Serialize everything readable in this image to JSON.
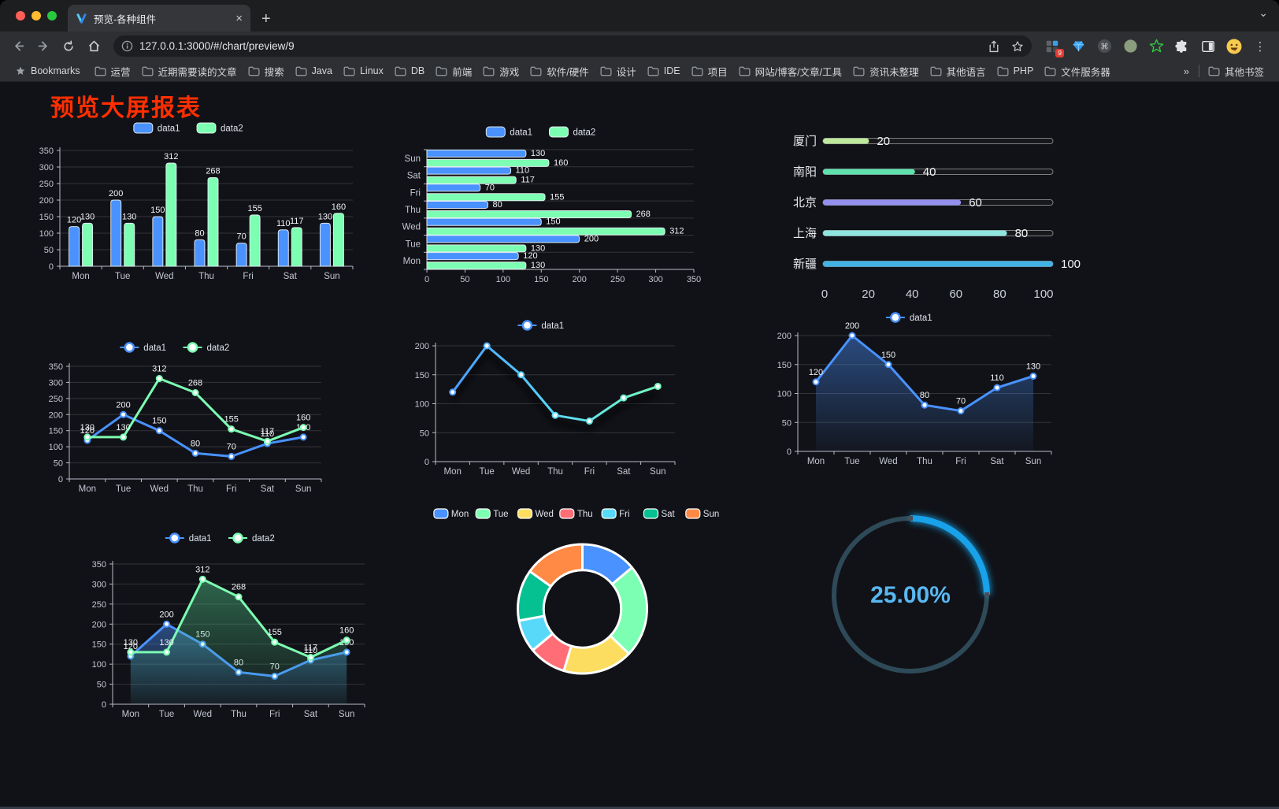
{
  "browser": {
    "tab": {
      "title": "预览-各种组件",
      "close_glyph": "×",
      "new_tab_glyph": "+",
      "tab_search_glyph": "⌄"
    },
    "url": "127.0.0.1:3000/#/chart/preview/9",
    "menu_glyph": "⋮",
    "extension_badge": "9",
    "bookmarks_label": "Bookmarks",
    "bookmark_folders": [
      "运营",
      "近期需要读的文章",
      "搜索",
      "Java",
      "Linux",
      "DB",
      "前端",
      "游戏",
      "软件/硬件",
      "设计",
      "IDE",
      "项目",
      "网站/博客/文章/工具",
      "资讯未整理",
      "其他语言",
      "PHP",
      "文件服务器"
    ],
    "bookmarks_overflow_glyph": "»",
    "other_bookmarks_label": "其他书签"
  },
  "page": {
    "title": "预览大屏报表",
    "title_color": "#ff2f00",
    "background": "#111217"
  },
  "palette": {
    "blue": "#4992ff",
    "green": "#7cffb2",
    "yellow": "#fddd60",
    "red": "#ff6e76",
    "lightblue": "#58d9f9",
    "teal": "#05c091",
    "orange": "#ff8a45"
  },
  "chart_data": [
    {
      "type": "bar",
      "categories": [
        "Mon",
        "Tue",
        "Wed",
        "Thu",
        "Fri",
        "Sat",
        "Sun"
      ],
      "series": [
        {
          "name": "data1",
          "color": "#4992ff",
          "values": [
            120,
            200,
            150,
            80,
            70,
            110,
            130
          ]
        },
        {
          "name": "data2",
          "color": "#7cffb2",
          "values": [
            130,
            130,
            312,
            268,
            155,
            117,
            160
          ]
        }
      ],
      "ylim": [
        0,
        350
      ],
      "ystep": 50,
      "grid": true,
      "legend_position": "top",
      "value_labels": true
    },
    {
      "type": "bar-horizontal",
      "categories_top_to_bottom": [
        "Sun",
        "Sat",
        "Fri",
        "Thu",
        "Wed",
        "Tue",
        "Mon"
      ],
      "series": [
        {
          "name": "data1",
          "color": "#4992ff",
          "values_top_to_bottom": [
            130,
            110,
            70,
            80,
            150,
            200,
            120
          ]
        },
        {
          "name": "data2",
          "color": "#7cffb2",
          "values_top_to_bottom": [
            160,
            117,
            155,
            268,
            312,
            130,
            130
          ]
        }
      ],
      "xlim": [
        0,
        350
      ],
      "xstep": 50,
      "grid": true,
      "legend_position": "top",
      "value_labels": true
    },
    {
      "type": "progress",
      "items": [
        {
          "label": "厦门",
          "value": 20,
          "color": "#bfe99d"
        },
        {
          "label": "南阳",
          "value": 40,
          "color": "#5fe0ad"
        },
        {
          "label": "北京",
          "value": 60,
          "color": "#9490ee"
        },
        {
          "label": "上海",
          "value": 80,
          "color": "#8fe6e0"
        },
        {
          "label": "新疆",
          "value": 100,
          "color": "#41b2e4"
        }
      ],
      "xlim": [
        0,
        100
      ],
      "xticks": [
        0,
        20,
        40,
        60,
        80,
        100
      ]
    },
    {
      "type": "line",
      "categories": [
        "Mon",
        "Tue",
        "Wed",
        "Thu",
        "Fri",
        "Sat",
        "Sun"
      ],
      "series": [
        {
          "name": "data1",
          "color": "#4992ff",
          "values": [
            120,
            200,
            150,
            80,
            70,
            110,
            130
          ]
        },
        {
          "name": "data2",
          "color": "#7cffb2",
          "values": [
            130,
            130,
            312,
            268,
            155,
            117,
            160
          ]
        }
      ],
      "ylim": [
        0,
        350
      ],
      "ystep": 50,
      "grid": true,
      "value_labels": true,
      "area": false
    },
    {
      "type": "line",
      "categories": [
        "Mon",
        "Tue",
        "Wed",
        "Thu",
        "Fri",
        "Sat",
        "Sun"
      ],
      "series": [
        {
          "name": "data1",
          "color": "#4992ff",
          "values": [
            120,
            200,
            150,
            80,
            70,
            110,
            130
          ]
        }
      ],
      "ylim": [
        0,
        200
      ],
      "ystep": 50,
      "grid": true,
      "value_labels": false,
      "area": false,
      "gradient_stroke": [
        "#4992ff",
        "#58d9f9",
        "#7cffb2"
      ],
      "shadow": true
    },
    {
      "type": "line",
      "categories": [
        "Mon",
        "Tue",
        "Wed",
        "Thu",
        "Fri",
        "Sat",
        "Sun"
      ],
      "series": [
        {
          "name": "data1",
          "color": "#4992ff",
          "values": [
            120,
            200,
            150,
            80,
            70,
            110,
            130
          ]
        }
      ],
      "ylim": [
        0,
        200
      ],
      "ystep": 50,
      "grid": true,
      "value_labels": true,
      "area": true
    },
    {
      "type": "line",
      "categories": [
        "Mon",
        "Tue",
        "Wed",
        "Thu",
        "Fri",
        "Sat",
        "Sun"
      ],
      "series": [
        {
          "name": "data1",
          "color": "#4992ff",
          "values": [
            120,
            200,
            150,
            80,
            70,
            110,
            130
          ]
        },
        {
          "name": "data2",
          "color": "#7cffb2",
          "values": [
            130,
            130,
            312,
            268,
            155,
            117,
            160
          ]
        }
      ],
      "ylim": [
        0,
        350
      ],
      "ystep": 50,
      "grid": true,
      "value_labels": true,
      "area": true
    },
    {
      "type": "pie",
      "inner_ratio": 0.6,
      "items": [
        {
          "label": "Mon",
          "value": 120,
          "color": "#4992ff"
        },
        {
          "label": "Tue",
          "value": 200,
          "color": "#7cffb2"
        },
        {
          "label": "Wed",
          "value": 150,
          "color": "#fddd60"
        },
        {
          "label": "Thu",
          "value": 80,
          "color": "#ff6e76"
        },
        {
          "label": "Fri",
          "value": 70,
          "color": "#58d9f9"
        },
        {
          "label": "Sat",
          "value": 110,
          "color": "#05c091"
        },
        {
          "label": "Sun",
          "value": 130,
          "color": "#ff8a45"
        }
      ],
      "legend_position": "top"
    },
    {
      "type": "gauge",
      "value_percent": 25,
      "label": "25.00%",
      "track_color": "#2e4a58",
      "progress_color": "#17a2ea",
      "text_color": "#58b8f2"
    }
  ]
}
